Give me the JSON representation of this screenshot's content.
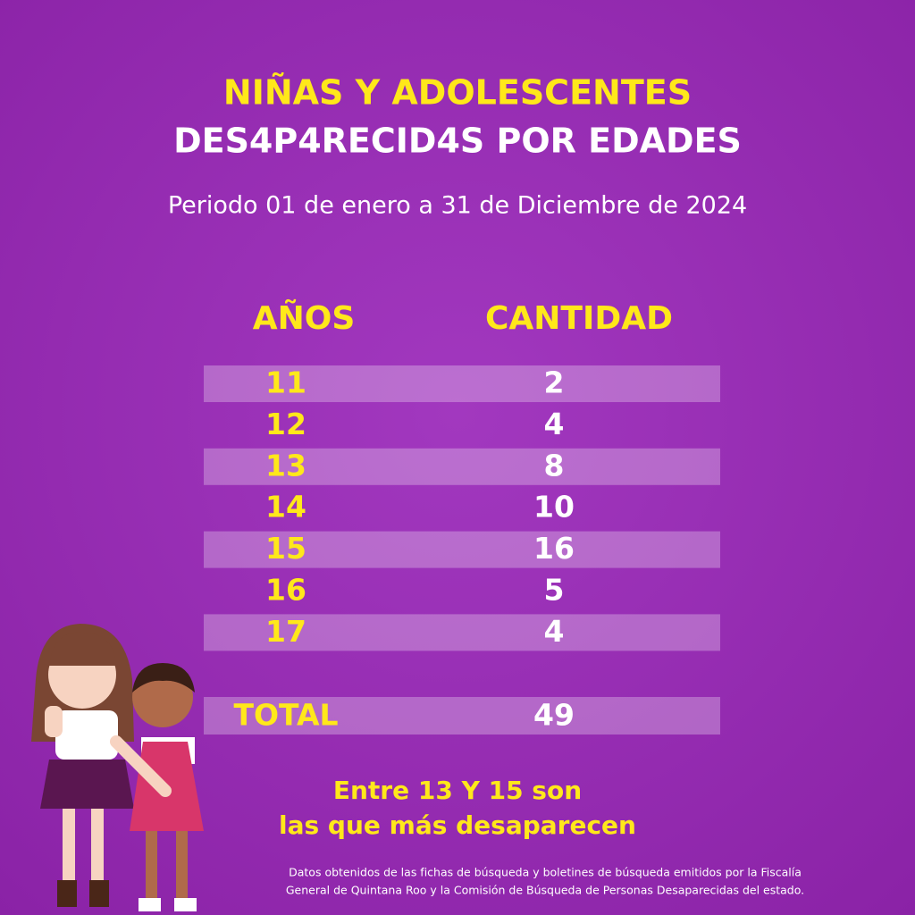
{
  "header": {
    "title_line1": "NIÑAS Y ADOLESCENTES",
    "title_line2": "DES4P4RECID4S POR EDADES",
    "subtitle": "Periodo 01 de enero a 31 de Diciembre de 2024"
  },
  "table": {
    "columns": [
      "AÑOS",
      "CANTIDAD"
    ],
    "rows": [
      [
        11,
        2
      ],
      [
        12,
        4
      ],
      [
        13,
        8
      ],
      [
        14,
        10
      ],
      [
        15,
        16
      ],
      [
        16,
        5
      ],
      [
        17,
        4
      ]
    ],
    "total": [
      "TOTAL",
      49
    ]
  },
  "note": [
    "Entre 13 Y 15 son",
    "las que más desaparecen"
  ],
  "source": [
    "Datos obtenidos de las fichas de búsqueda y boletines de búsqueda emitidos por la Fiscalía",
    "General de Quintana Roo y la Comisión de Búsqueda de Personas Desaparecidas del estado."
  ]
}
